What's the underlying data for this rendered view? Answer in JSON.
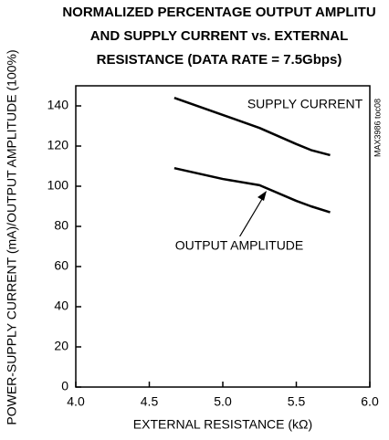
{
  "chart_data": {
    "type": "line",
    "title_lines": [
      "NORMALIZED PERCENTAGE OUTPUT AMPLITU",
      "AND SUPPLY CURRENT vs. EXTERNAL",
      "RESISTANCE (DATA RATE = 7.5Gbps)"
    ],
    "x_label": "EXTERNAL RESISTANCE (kΩ)",
    "y_label": "POWER-SUPPLY CURRENT (mA)/OUTPUT AMPLITUDE (100%)",
    "side_note": "MAX3986 toc08",
    "xlim": [
      4.0,
      6.0
    ],
    "xticks": [
      {
        "value": 4.0,
        "label": "4.0"
      },
      4.5,
      {
        "value": 5.0,
        "label": "5.0"
      },
      5.5,
      {
        "value": 6.0,
        "label": "6.0"
      }
    ],
    "ylim": [
      0,
      150
    ],
    "yticks": [
      0,
      20,
      40,
      60,
      80,
      100,
      120,
      140
    ],
    "x": [
      4.67,
      5.0,
      5.25,
      5.5,
      5.6,
      5.73
    ],
    "series": [
      {
        "name": "SUPPLY CURRENT",
        "color": "#000000",
        "values": [
          144,
          135.5,
          129,
          121,
          118,
          115.5
        ]
      },
      {
        "name": "OUTPUT AMPLITUDE",
        "color": "#000000",
        "values": [
          109,
          103.6,
          100.5,
          92.7,
          90,
          87
        ]
      }
    ]
  }
}
